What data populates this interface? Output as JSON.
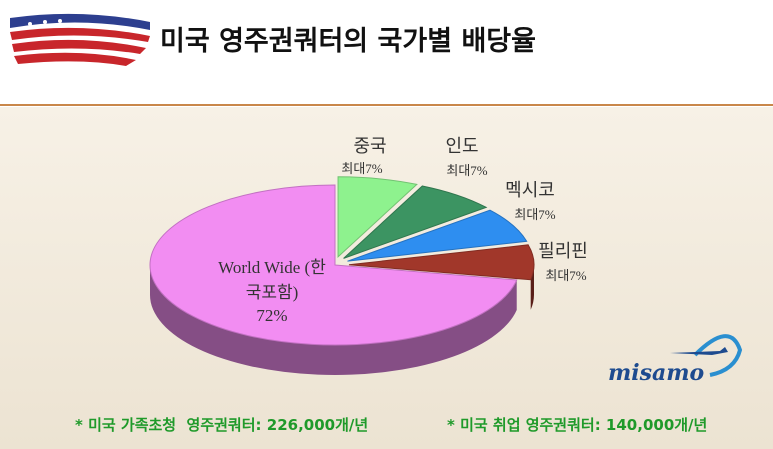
{
  "title": "미국 영주권쿼터의 국가별 배당율",
  "chart_data": {
    "type": "pie",
    "categories": [
      "중국",
      "인도",
      "멕시코",
      "필리핀",
      "World Wide (한국포함)"
    ],
    "values": [
      7,
      7,
      7,
      7,
      72
    ],
    "value_labels": [
      "최대7%",
      "최대7%",
      "최대7%",
      "최대7%",
      "72%"
    ],
    "colors": [
      "#8ef28e",
      "#3c9462",
      "#2e8ef0",
      "#a1372a",
      "#f28df2"
    ]
  },
  "footnotes": [
    "* 미국 가족초청  영주권쿼터: 226,000개/년",
    "* 미국 취업 영주권쿼터: 140,000개/년"
  ],
  "logo": "misamo"
}
